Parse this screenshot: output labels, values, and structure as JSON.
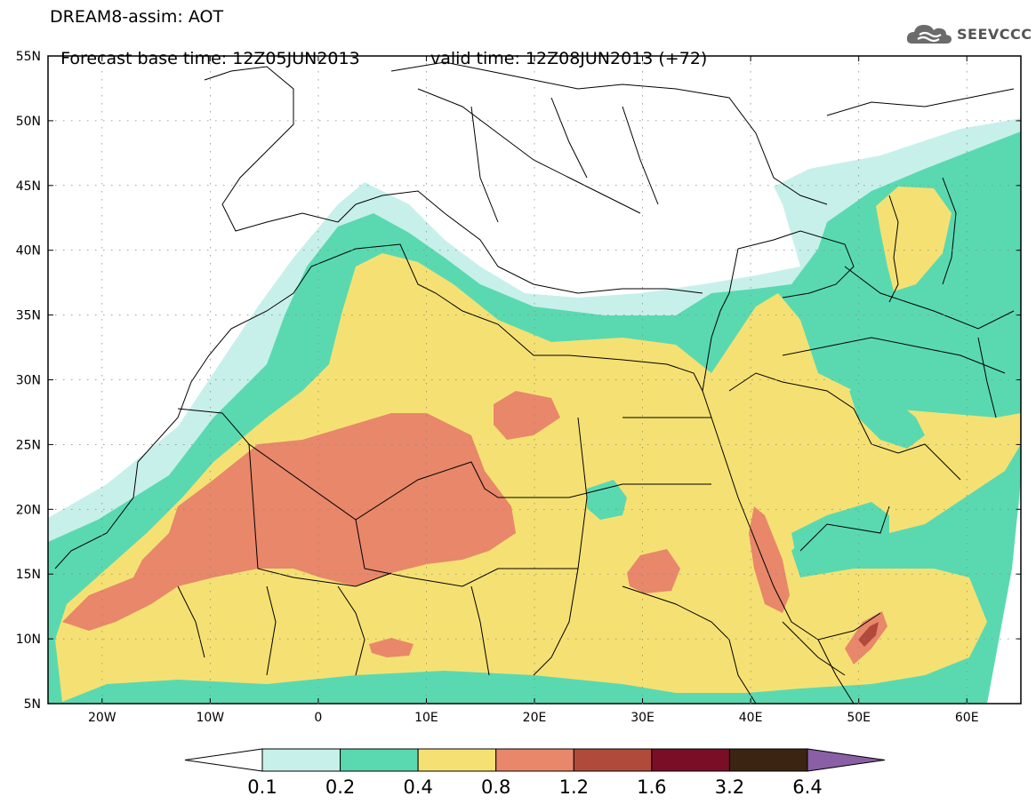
{
  "header": {
    "title_line1": "DREAM8-assim: AOT",
    "title_base": "Forecast base time: 12Z05JUN2013",
    "title_valid": "valid time: 12Z08JUN2013 (+72)"
  },
  "logo": {
    "text": "SEEVCCC",
    "icon": "cloud-logo-icon"
  },
  "map": {
    "lon_range": [
      -25,
      65
    ],
    "lat_range": [
      5,
      55
    ],
    "lat_ticks": [
      "5N",
      "10N",
      "15N",
      "20N",
      "25N",
      "30N",
      "35N",
      "40N",
      "45N",
      "50N",
      "55N"
    ],
    "lon_ticks": [
      "20W",
      "10W",
      "0",
      "10E",
      "20E",
      "30E",
      "40E",
      "50E",
      "60E"
    ]
  },
  "colorbar": {
    "labels": [
      "0.1",
      "0.2",
      "0.4",
      "0.8",
      "1.2",
      "1.6",
      "3.2",
      "6.4"
    ],
    "colors": [
      "#ffffff",
      "#c8f0ea",
      "#5ad9b0",
      "#f5e173",
      "#e8876a",
      "#b04a3a",
      "#7a0e26",
      "#3b2412",
      "#8a5fa6"
    ]
  }
}
